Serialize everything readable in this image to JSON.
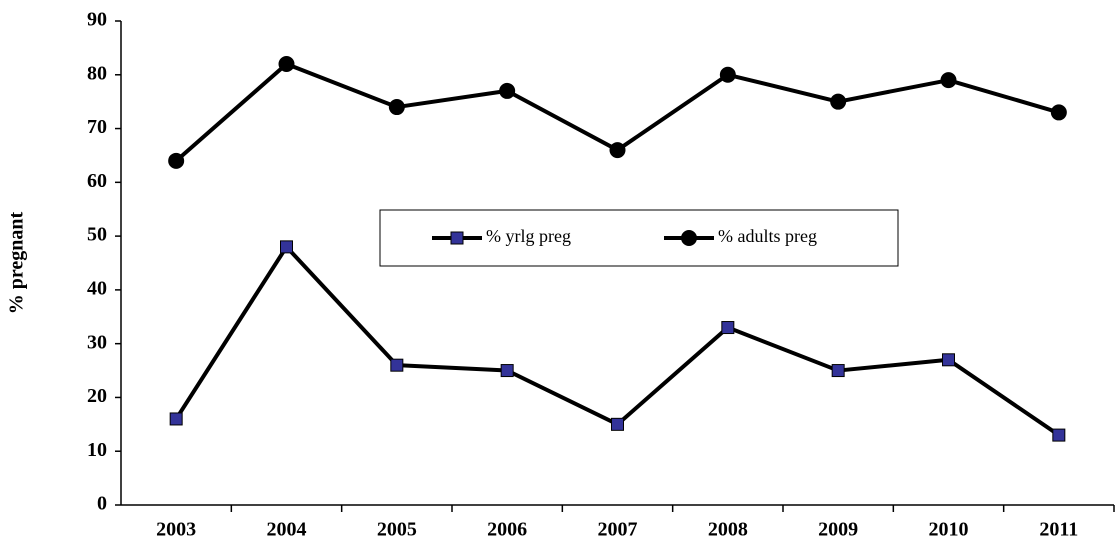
{
  "chart_data": {
    "type": "line",
    "y_label": "% pregnant",
    "categories": [
      "2003",
      "2004",
      "2005",
      "2006",
      "2007",
      "2008",
      "2009",
      "2010",
      "2011"
    ],
    "series": [
      {
        "name": "% yrlg preg",
        "color": "#000000",
        "marker": "square",
        "marker_color": "#333399",
        "values": [
          16,
          48,
          26,
          25,
          15,
          33,
          25,
          27,
          13
        ]
      },
      {
        "name": "% adults preg",
        "color": "#000000",
        "marker": "circle",
        "marker_color": "#000000",
        "values": [
          64,
          82,
          74,
          77,
          66,
          80,
          75,
          79,
          73
        ]
      }
    ],
    "ylim": [
      0,
      90
    ],
    "yticks": [
      0,
      10,
      20,
      30,
      40,
      50,
      60,
      70,
      80,
      90
    ],
    "grid": false,
    "legend_position": "center"
  }
}
